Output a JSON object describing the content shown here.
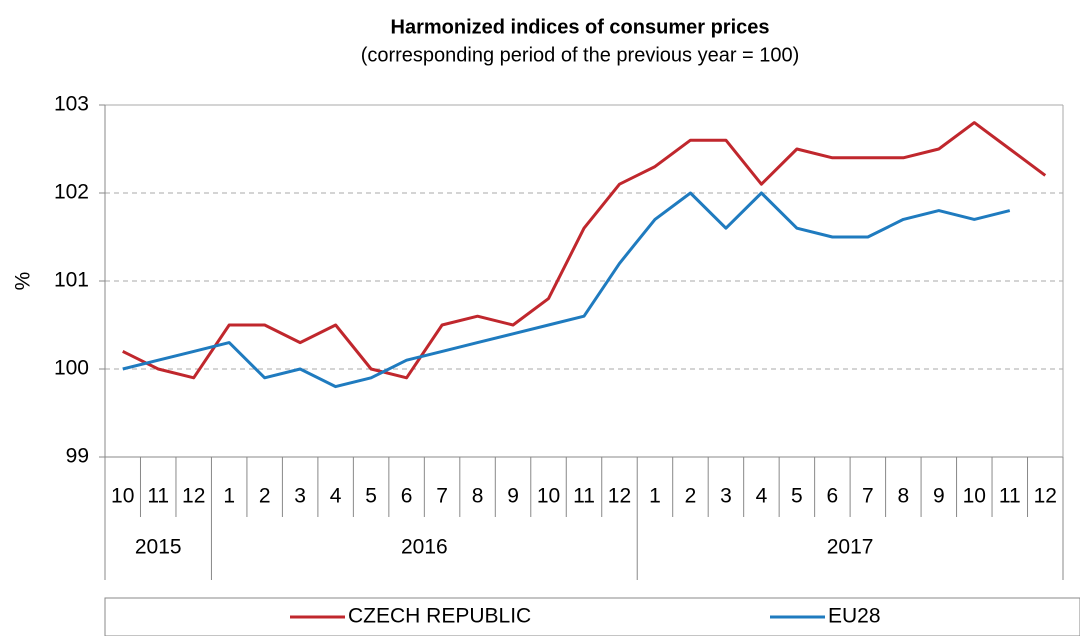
{
  "chart_data": {
    "type": "line",
    "title": "Harmonized indices of consumer prices",
    "subtitle": "(corresponding period of the previous year = 100)",
    "y_label": "%",
    "groups": [
      {
        "name": "2015",
        "categories": [
          "10",
          "11",
          "12"
        ]
      },
      {
        "name": "2016",
        "categories": [
          "1",
          "2",
          "3",
          "4",
          "5",
          "6",
          "7",
          "8",
          "9",
          "10",
          "11",
          "12"
        ]
      },
      {
        "name": "2017",
        "categories": [
          "1",
          "2",
          "3",
          "4",
          "5",
          "6",
          "7",
          "8",
          "9",
          "10",
          "11",
          "12"
        ]
      }
    ],
    "series": [
      {
        "name": "CZECH REPUBLIC",
        "color": "#c0272d",
        "values": [
          100.2,
          100.0,
          99.9,
          100.5,
          100.5,
          100.3,
          100.5,
          100.0,
          99.9,
          100.5,
          100.6,
          100.5,
          100.8,
          101.6,
          102.1,
          102.3,
          102.6,
          102.6,
          102.1,
          102.5,
          102.4,
          102.4,
          102.4,
          102.5,
          102.8,
          102.5,
          102.2
        ]
      },
      {
        "name": "EU28",
        "color": "#1f7bbf",
        "values": [
          100.0,
          100.1,
          100.2,
          100.3,
          99.9,
          100.0,
          99.8,
          99.9,
          100.1,
          100.2,
          100.3,
          100.4,
          100.5,
          100.6,
          101.2,
          101.7,
          102.0,
          101.6,
          102.0,
          101.6,
          101.5,
          101.5,
          101.7,
          101.8,
          101.7,
          101.8,
          null
        ]
      }
    ],
    "ylim": [
      99,
      103
    ],
    "yticks": [
      99,
      100,
      101,
      102,
      103
    ],
    "grid": true,
    "legend": "bottom"
  }
}
